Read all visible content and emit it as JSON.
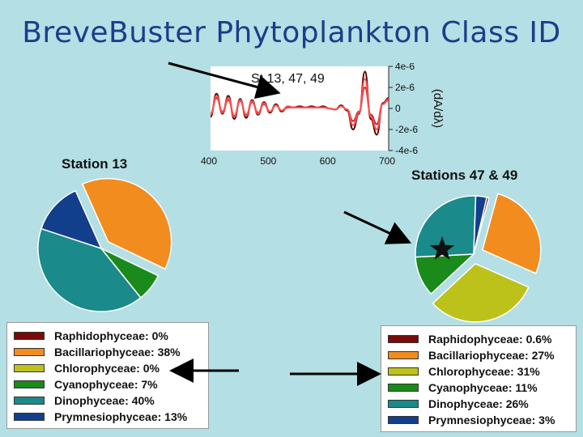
{
  "slide": {
    "title": "BreveBuster Phytoplankton Class ID"
  },
  "chart_data": [
    {
      "type": "line",
      "title": "St 13, 47, 49",
      "ylabel": "(dA/dλ)",
      "xlim": [
        400,
        700
      ],
      "ylim": [
        -4e-06,
        4e-06
      ],
      "x_ticks": [
        "400",
        "500",
        "600",
        "700"
      ],
      "y_ticks": [
        "4e-6",
        "2e-6",
        "0",
        "-2e-6",
        "-4e-6"
      ],
      "series": [
        {
          "color": "#5a0000",
          "x": [
            400,
            410,
            420,
            430,
            440,
            450,
            460,
            470,
            480,
            490,
            500,
            510,
            520,
            530,
            540,
            550,
            560,
            570,
            580,
            590,
            600,
            610,
            620,
            630,
            640,
            650,
            660,
            670,
            680,
            690,
            700
          ],
          "y": [
            -8e-07,
            1.4e-06,
            -5e-07,
            1.2e-06,
            -1e-06,
            9e-07,
            -9e-07,
            8e-07,
            -6e-07,
            6e-07,
            -4e-07,
            4e-07,
            -3e-07,
            2e-07,
            1e-07,
            2e-07,
            1e-07,
            2e-07,
            1e-07,
            2e-07,
            0.0,
            -1e-07,
            3e-07,
            -2e-07,
            -2e-06,
            -5e-07,
            3.5e-06,
            -1e-06,
            -2.5e-06,
            5e-07,
            1e-06
          ]
        },
        {
          "color": "#d81e1e",
          "x": [
            400,
            410,
            420,
            430,
            440,
            450,
            460,
            470,
            480,
            490,
            500,
            510,
            520,
            530,
            540,
            550,
            560,
            570,
            580,
            590,
            600,
            610,
            620,
            630,
            640,
            650,
            660,
            670,
            680,
            690,
            700
          ],
          "y": [
            -5e-07,
            1e-06,
            -3e-07,
            8e-07,
            -7e-07,
            7e-07,
            -6e-07,
            6e-07,
            -4e-07,
            4e-07,
            -3e-07,
            3e-07,
            -2e-07,
            1e-07,
            1e-07,
            1e-07,
            1e-07,
            1e-07,
            1e-07,
            1e-07,
            0.0,
            -1e-07,
            2e-07,
            -1e-07,
            -1.2e-06,
            -3e-07,
            2e-06,
            -6e-07,
            -1.5e-06,
            4e-07,
            8e-07
          ]
        },
        {
          "color": "#ff5050",
          "x": [
            400,
            410,
            420,
            430,
            440,
            450,
            460,
            470,
            480,
            490,
            500,
            510,
            520,
            530,
            540,
            550,
            560,
            570,
            580,
            590,
            600,
            610,
            620,
            630,
            640,
            650,
            660,
            670,
            680,
            690,
            700
          ],
          "y": [
            -6e-07,
            1.2e-06,
            -4e-07,
            1e-06,
            -8e-07,
            8e-07,
            -7e-07,
            7e-07,
            -5e-07,
            5e-07,
            -3e-07,
            3e-07,
            -2e-07,
            2e-07,
            1e-07,
            1e-07,
            1e-07,
            1e-07,
            1e-07,
            1e-07,
            0.0,
            -1e-07,
            2e-07,
            -1e-07,
            -1.6e-06,
            -4e-07,
            2.8e-06,
            -8e-07,
            -2e-06,
            4e-07,
            9e-07
          ]
        }
      ]
    },
    {
      "type": "pie",
      "title": "Station 13",
      "slices": [
        {
          "label": "Raphidophyceae",
          "legend_text": "Raphidophyceae: 0%",
          "value": 0,
          "color": "#7a0a0a",
          "exploded": false
        },
        {
          "label": "Bacillariophyceae",
          "legend_text": "Bacillariophyceae: 38%",
          "value": 38,
          "color": "#f28c1e",
          "exploded": true
        },
        {
          "label": "Chlorophyceae",
          "legend_text": "Chlorophyceae: 0%",
          "value": 0,
          "color": "#bcc21a",
          "exploded": false
        },
        {
          "label": "Cyanophyceae",
          "legend_text": "Cyanophyceae: 7%",
          "value": 7,
          "color": "#1a8a1a",
          "exploded": false
        },
        {
          "label": "Dinophyceae",
          "legend_text": "Dinophyceae: 40%",
          "value": 40,
          "color": "#1a8a8a",
          "exploded": false
        },
        {
          "label": "Prymnesiophyceae",
          "legend_text": "Prymnesiophyceae: 13%",
          "value": 13,
          "color": "#123f8c",
          "exploded": false
        }
      ]
    },
    {
      "type": "pie",
      "title": "Stations 47 & 49",
      "slices": [
        {
          "label": "Raphidophyceae",
          "legend_text": "Raphidophyceae: 0.6%",
          "value": 0.6,
          "color": "#7a0a0a",
          "exploded": false
        },
        {
          "label": "Bacillariophyceae",
          "legend_text": "Bacillariophyceae: 27%",
          "value": 27,
          "color": "#f28c1e",
          "exploded": true
        },
        {
          "label": "Chlorophyceae",
          "legend_text": "Chlorophyceae: 31%",
          "value": 31,
          "color": "#bcc21a",
          "exploded": true
        },
        {
          "label": "Cyanophyceae",
          "legend_text": "Cyanophyceae: 11%",
          "value": 11,
          "color": "#1a8a1a",
          "exploded": false
        },
        {
          "label": "Dinophyceae",
          "legend_text": "Dinophyceae: 26%",
          "value": 26,
          "color": "#1a8a8a",
          "exploded": false
        },
        {
          "label": "Prymnesiophyceae",
          "legend_text": "Prymnesiophyceae: 3%",
          "value": 3,
          "color": "#123f8c",
          "exploded": false
        }
      ]
    }
  ],
  "icons": {
    "highlight_marker": "star-icon",
    "pointer": "arrow-icon"
  }
}
